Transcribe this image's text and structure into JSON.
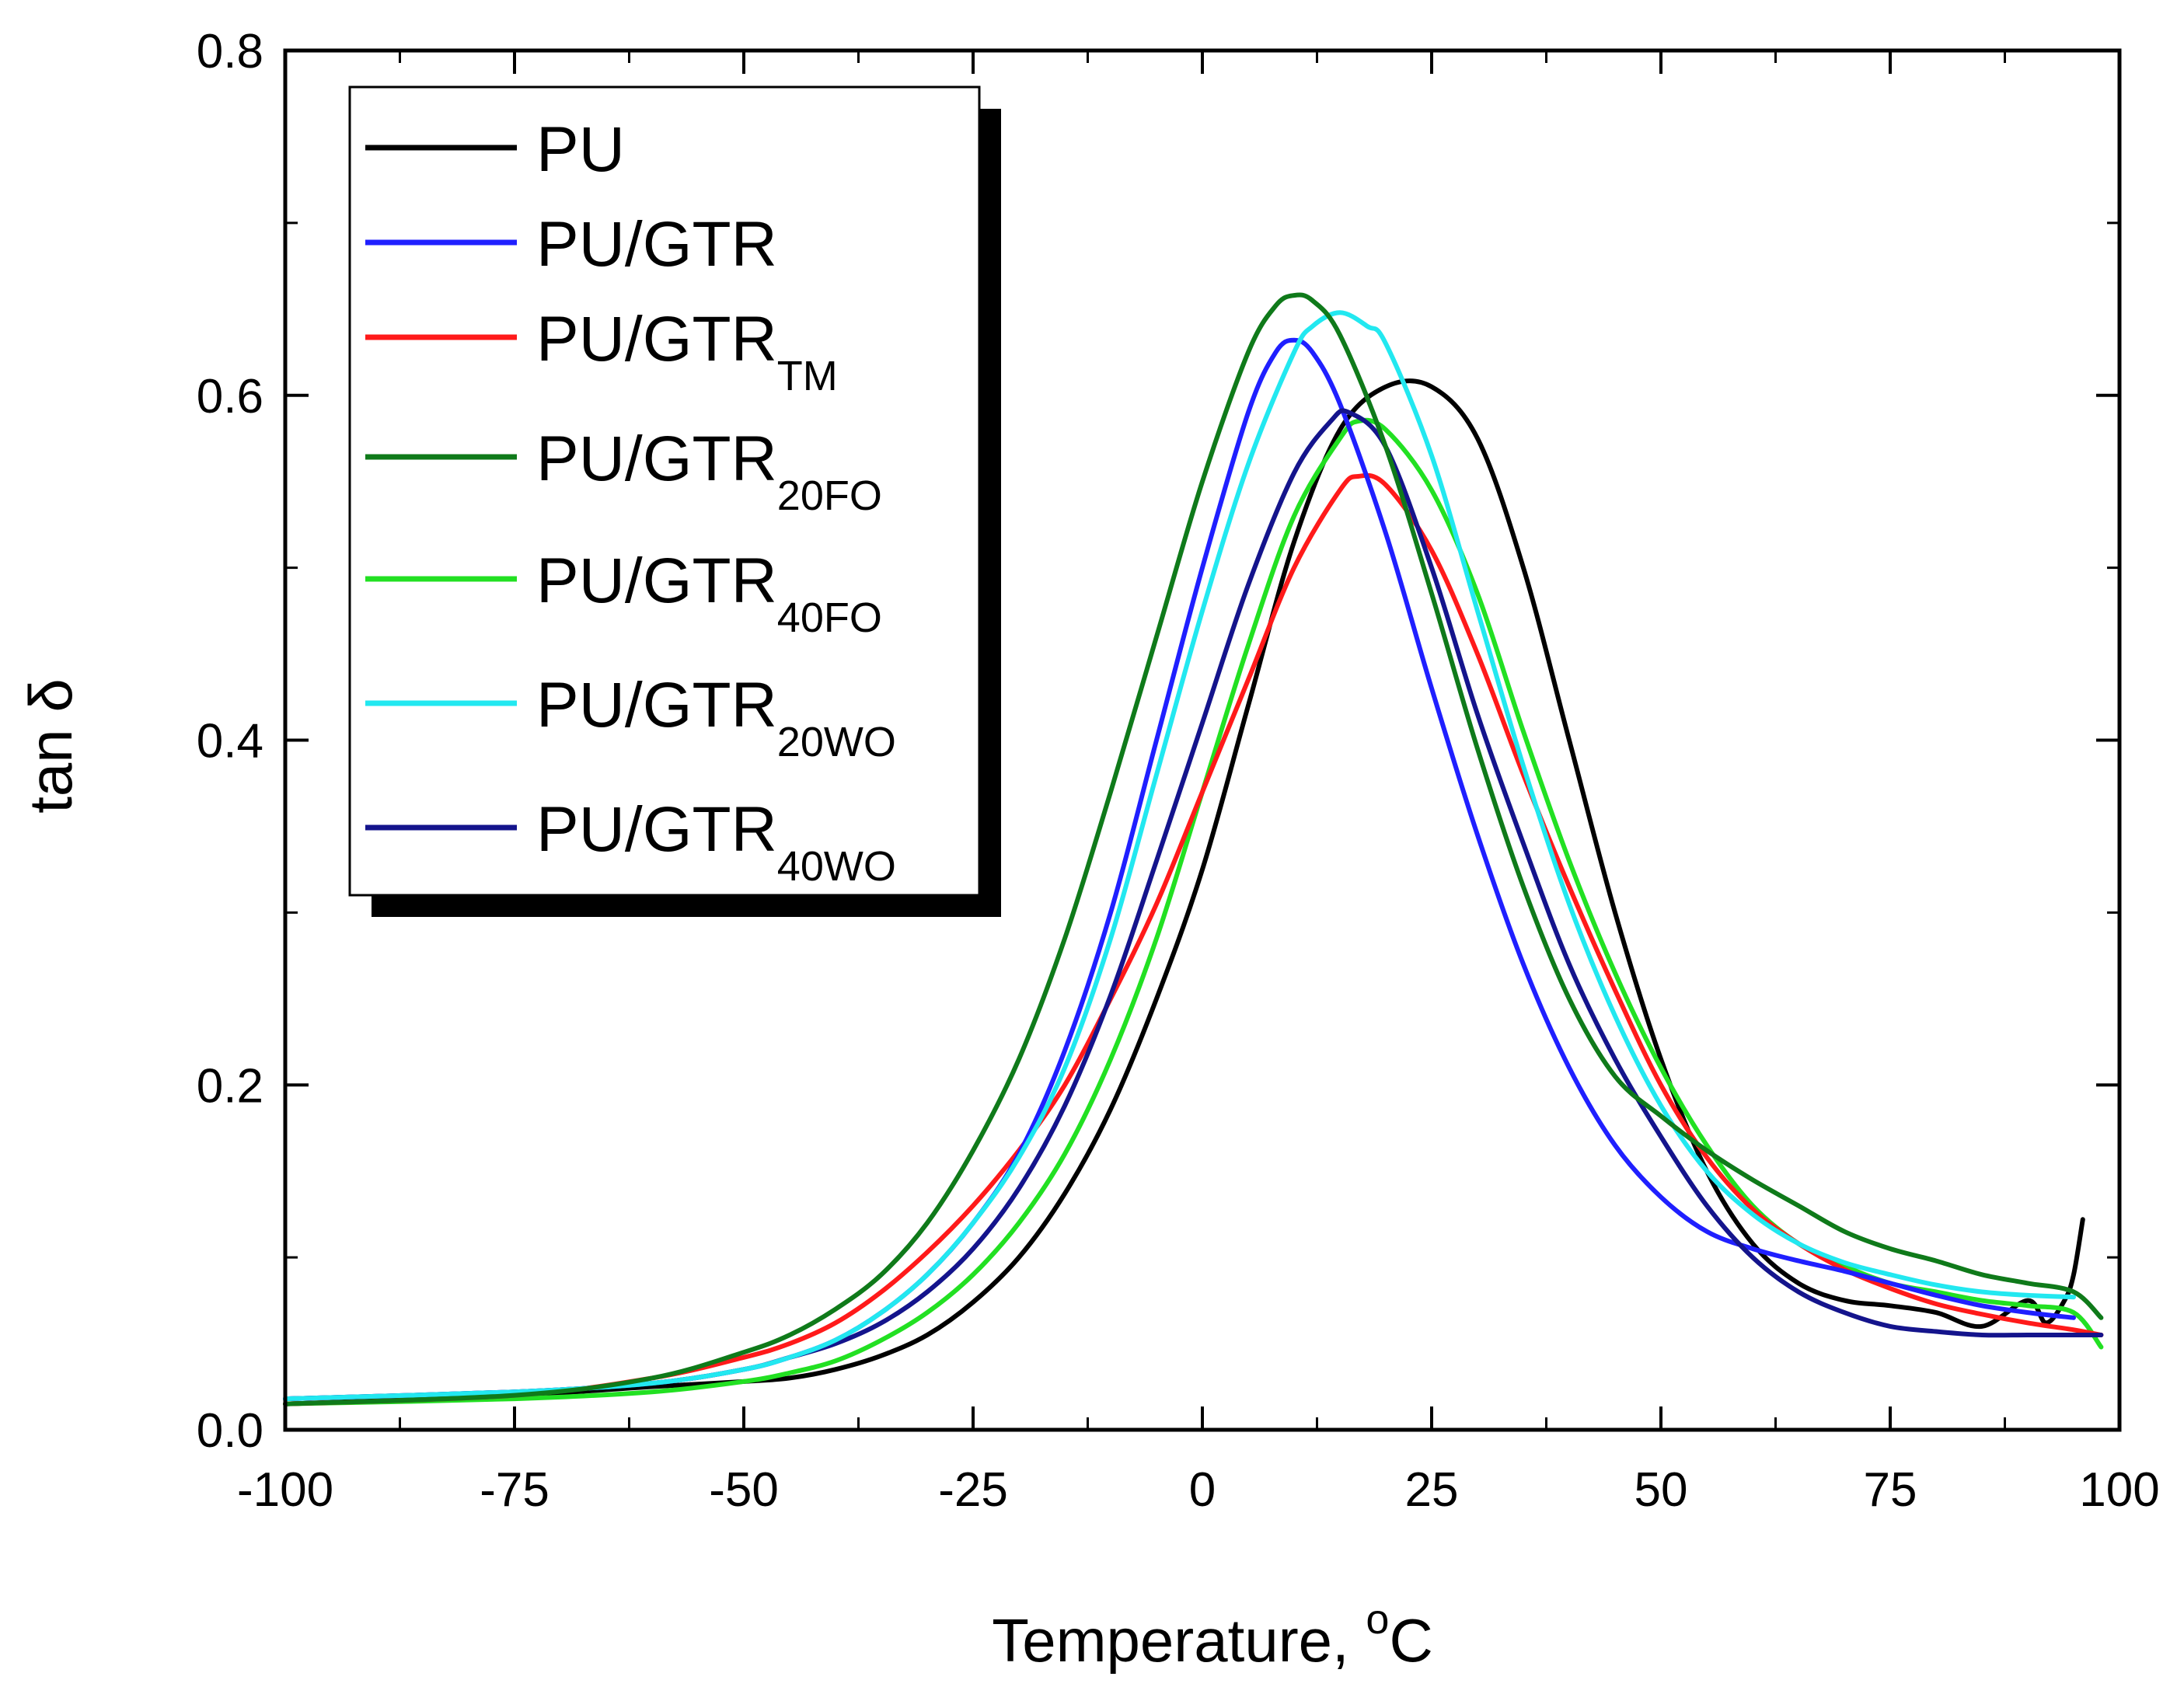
{
  "chart_data": {
    "type": "line",
    "title": "",
    "xlabel": "Temperature, ",
    "xlabel_sup": "o",
    "xlabel_unit": "C",
    "ylabel": "tan δ",
    "xlim": [
      -100,
      100
    ],
    "ylim": [
      0.0,
      0.8
    ],
    "x_ticks": [
      "-100",
      "-75",
      "-50",
      "-25",
      "0",
      "25",
      "50",
      "75",
      "100"
    ],
    "y_ticks": [
      "0.0",
      "0.2",
      "0.4",
      "0.6",
      "0.8"
    ],
    "legend_position": "top-left",
    "series": [
      {
        "name": "PU",
        "base": "PU",
        "sub": "",
        "color": "#000000",
        "x": [
          -100,
          -75,
          -60,
          -50,
          -45,
          -40,
          -35,
          -30,
          -25,
          -20,
          -15,
          -10,
          -5,
          0,
          5,
          10,
          15,
          20,
          25,
          30,
          35,
          40,
          45,
          50,
          55,
          60,
          65,
          70,
          75,
          80,
          85,
          90,
          92,
          94,
          95,
          96
        ],
        "y": [
          0.015,
          0.02,
          0.025,
          0.028,
          0.03,
          0.035,
          0.043,
          0.055,
          0.074,
          0.1,
          0.137,
          0.186,
          0.25,
          0.325,
          0.42,
          0.515,
          0.58,
          0.605,
          0.605,
          0.575,
          0.5,
          0.4,
          0.3,
          0.215,
          0.15,
          0.108,
          0.085,
          0.075,
          0.072,
          0.068,
          0.06,
          0.075,
          0.062,
          0.075,
          0.09,
          0.122
        ]
      },
      {
        "name": "PU/GTR",
        "base": "PU/GTR",
        "sub": "",
        "color": "#1f1fff",
        "x": [
          -100,
          -75,
          -60,
          -50,
          -45,
          -40,
          -35,
          -30,
          -25,
          -20,
          -15,
          -10,
          -5,
          0,
          5,
          8,
          10,
          12,
          15,
          20,
          25,
          30,
          35,
          40,
          45,
          50,
          55,
          60,
          65,
          70,
          75,
          80,
          85,
          90,
          95
        ],
        "y": [
          0.018,
          0.022,
          0.027,
          0.035,
          0.042,
          0.052,
          0.068,
          0.09,
          0.12,
          0.16,
          0.22,
          0.3,
          0.4,
          0.5,
          0.59,
          0.625,
          0.632,
          0.625,
          0.595,
          0.52,
          0.43,
          0.345,
          0.27,
          0.21,
          0.165,
          0.135,
          0.115,
          0.105,
          0.098,
          0.092,
          0.085,
          0.078,
          0.072,
          0.068,
          0.065
        ]
      },
      {
        "name": "PU/GTRTM",
        "base": "PU/GTR",
        "sub": "TM",
        "color": "#ff1a1a",
        "x": [
          -100,
          -75,
          -60,
          -50,
          -45,
          -40,
          -35,
          -30,
          -25,
          -20,
          -15,
          -10,
          -5,
          0,
          5,
          10,
          15,
          17,
          20,
          25,
          30,
          35,
          40,
          45,
          50,
          55,
          60,
          65,
          70,
          75,
          80,
          85,
          90,
          95,
          98
        ],
        "y": [
          0.015,
          0.02,
          0.03,
          0.042,
          0.05,
          0.062,
          0.08,
          0.103,
          0.13,
          0.162,
          0.2,
          0.25,
          0.305,
          0.37,
          0.435,
          0.5,
          0.545,
          0.553,
          0.548,
          0.51,
          0.45,
          0.38,
          0.315,
          0.255,
          0.2,
          0.158,
          0.128,
          0.108,
          0.093,
          0.082,
          0.073,
          0.067,
          0.062,
          0.058,
          0.055
        ]
      },
      {
        "name": "PU/GTR20FO",
        "base": "PU/GTR",
        "sub": "20FO",
        "color": "#0f7a1a",
        "x": [
          -100,
          -75,
          -60,
          -50,
          -45,
          -40,
          -35,
          -30,
          -25,
          -20,
          -15,
          -10,
          -5,
          0,
          5,
          8,
          10,
          12,
          15,
          20,
          25,
          30,
          35,
          40,
          45,
          50,
          55,
          60,
          65,
          70,
          75,
          80,
          85,
          90,
          95,
          98
        ],
        "y": [
          0.015,
          0.02,
          0.03,
          0.045,
          0.055,
          0.07,
          0.09,
          0.12,
          0.162,
          0.215,
          0.285,
          0.37,
          0.46,
          0.55,
          0.625,
          0.652,
          0.658,
          0.655,
          0.635,
          0.57,
          0.485,
          0.395,
          0.315,
          0.25,
          0.205,
          0.182,
          0.162,
          0.145,
          0.13,
          0.115,
          0.105,
          0.098,
          0.09,
          0.085,
          0.08,
          0.065
        ]
      },
      {
        "name": "PU/GTR40FO",
        "base": "PU/GTR",
        "sub": "40FO",
        "color": "#22e022",
        "x": [
          -100,
          -75,
          -60,
          -50,
          -45,
          -40,
          -35,
          -30,
          -25,
          -20,
          -15,
          -10,
          -5,
          0,
          5,
          10,
          15,
          17,
          20,
          25,
          30,
          35,
          40,
          45,
          50,
          55,
          60,
          65,
          70,
          75,
          80,
          85,
          90,
          95,
          98
        ],
        "y": [
          0.015,
          0.018,
          0.022,
          0.028,
          0.033,
          0.04,
          0.052,
          0.068,
          0.09,
          0.12,
          0.16,
          0.215,
          0.285,
          0.37,
          0.455,
          0.53,
          0.575,
          0.585,
          0.58,
          0.545,
          0.485,
          0.405,
          0.33,
          0.265,
          0.21,
          0.165,
          0.13,
          0.108,
          0.095,
          0.085,
          0.08,
          0.075,
          0.072,
          0.068,
          0.048
        ]
      },
      {
        "name": "PU/GTR20WO",
        "base": "PU/GTR",
        "sub": "20WO",
        "color": "#22e8f0",
        "x": [
          -100,
          -75,
          -60,
          -50,
          -45,
          -40,
          -35,
          -30,
          -25,
          -20,
          -15,
          -10,
          -5,
          0,
          5,
          10,
          12,
          15,
          18,
          20,
          25,
          30,
          35,
          40,
          45,
          50,
          55,
          60,
          65,
          70,
          75,
          80,
          85,
          90,
          95
        ],
        "y": [
          0.018,
          0.022,
          0.027,
          0.035,
          0.042,
          0.052,
          0.068,
          0.09,
          0.12,
          0.158,
          0.21,
          0.285,
          0.38,
          0.475,
          0.56,
          0.625,
          0.64,
          0.648,
          0.64,
          0.63,
          0.565,
          0.475,
          0.385,
          0.305,
          0.24,
          0.188,
          0.15,
          0.125,
          0.108,
          0.097,
          0.09,
          0.084,
          0.08,
          0.078,
          0.077
        ]
      },
      {
        "name": "PU/GTR40WO",
        "base": "PU/GTR",
        "sub": "40WO",
        "color": "#14148c",
        "x": [
          -100,
          -75,
          -60,
          -50,
          -45,
          -40,
          -35,
          -30,
          -25,
          -20,
          -15,
          -10,
          -5,
          0,
          5,
          10,
          14,
          16,
          20,
          25,
          30,
          35,
          40,
          45,
          50,
          55,
          60,
          65,
          70,
          75,
          80,
          85,
          90,
          95,
          98
        ],
        "y": [
          0.018,
          0.022,
          0.027,
          0.035,
          0.042,
          0.05,
          0.062,
          0.08,
          0.105,
          0.14,
          0.188,
          0.252,
          0.33,
          0.41,
          0.49,
          0.555,
          0.585,
          0.59,
          0.57,
          0.5,
          0.415,
          0.34,
          0.27,
          0.215,
          0.17,
          0.13,
          0.1,
          0.08,
          0.068,
          0.06,
          0.057,
          0.055,
          0.055,
          0.055,
          0.055
        ]
      }
    ]
  }
}
